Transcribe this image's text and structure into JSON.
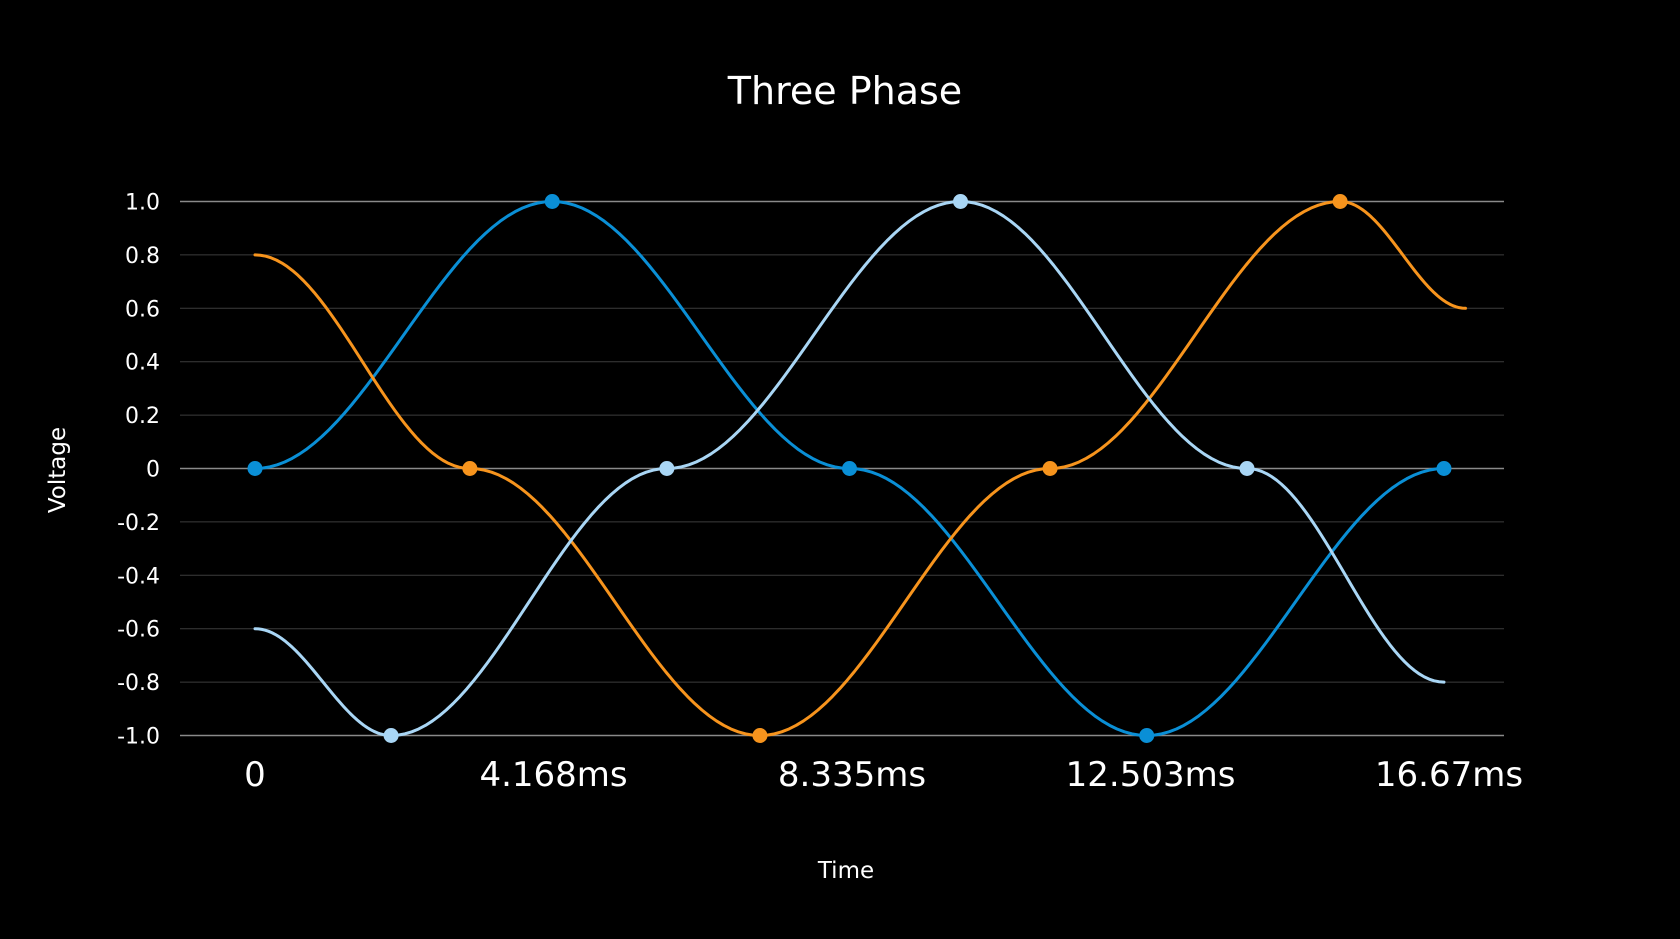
{
  "chart_data": {
    "type": "line",
    "title": "Three Phase",
    "xlabel": "Time",
    "ylabel": "Voltage",
    "ylim": [
      -1.0,
      1.0
    ],
    "xlim": [
      0,
      16.67
    ],
    "x_unit": "ms",
    "yticks": [
      1.0,
      0.8,
      0.6,
      0.4,
      0.2,
      0,
      -0.2,
      -0.4,
      -0.6,
      -0.8,
      -1.0
    ],
    "ytick_labels": [
      "1.0",
      "0.8",
      "0.6",
      "0.4",
      "0.2",
      "0",
      "-0.2",
      "-0.4",
      "-0.6",
      "-0.8",
      "-1.0"
    ],
    "xtick_values": [
      0,
      4.168,
      8.335,
      12.503,
      16.67
    ],
    "xtick_labels": [
      "0",
      "4.168ms",
      "8.335ms",
      "12.503ms",
      "16.67ms"
    ],
    "grid": true,
    "series": [
      {
        "color": "#0a8fd6",
        "x": [
          0,
          4.15,
          8.3,
          12.45,
          16.6
        ],
        "y": [
          0,
          1.0,
          0,
          -1.0,
          0
        ],
        "points": [
          {
            "x": 0,
            "y": 0
          },
          {
            "x": 4.15,
            "y": 1.0
          },
          {
            "x": 8.3,
            "y": 0
          },
          {
            "x": 12.45,
            "y": -1.0
          },
          {
            "x": 16.6,
            "y": 0
          }
        ]
      },
      {
        "color": "#f7941d",
        "x": [
          0,
          3.0,
          7.05,
          11.1,
          15.15,
          16.9
        ],
        "y": [
          0.8,
          0,
          -1.0,
          0,
          1.0,
          0.6
        ],
        "points": [
          {
            "x": 3.0,
            "y": 0
          },
          {
            "x": 7.05,
            "y": -1.0
          },
          {
            "x": 11.1,
            "y": 0
          },
          {
            "x": 15.15,
            "y": 1.0
          }
        ]
      },
      {
        "color": "#a9d6f5",
        "x": [
          0,
          1.9,
          5.75,
          9.85,
          13.85,
          16.6
        ],
        "y": [
          -0.6,
          -1.0,
          0,
          1.0,
          0,
          -0.8
        ],
        "points": [
          {
            "x": 1.9,
            "y": -1.0
          },
          {
            "x": 5.75,
            "y": 0
          },
          {
            "x": 9.85,
            "y": 1.0
          },
          {
            "x": 13.85,
            "y": 0
          }
        ]
      }
    ]
  }
}
